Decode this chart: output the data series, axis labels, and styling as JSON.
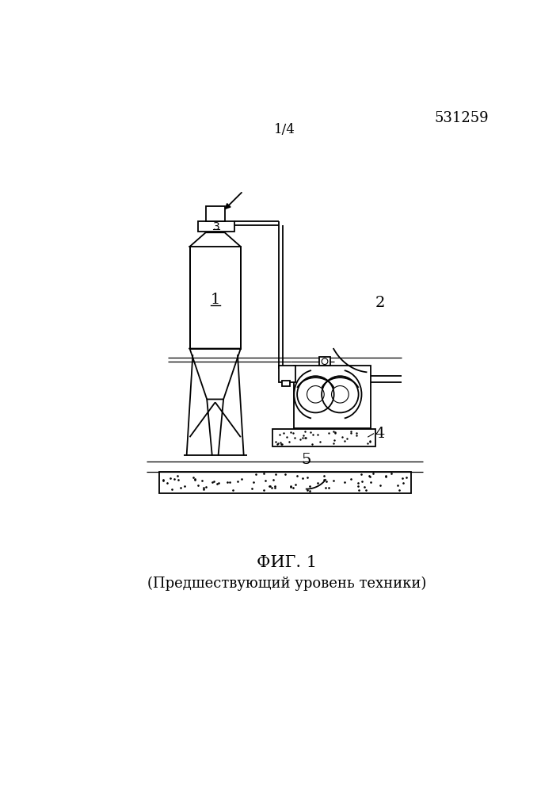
{
  "title_top_right": "531259",
  "title_page": "1/4",
  "fig_label": "ФИГ. 1",
  "fig_sublabel": "(Предшествующий уровень техники)",
  "bg_color": "#ffffff",
  "line_color": "#000000",
  "label_1": "1",
  "label_2": "2",
  "label_3": "3",
  "label_4": "4",
  "label_5": "5"
}
